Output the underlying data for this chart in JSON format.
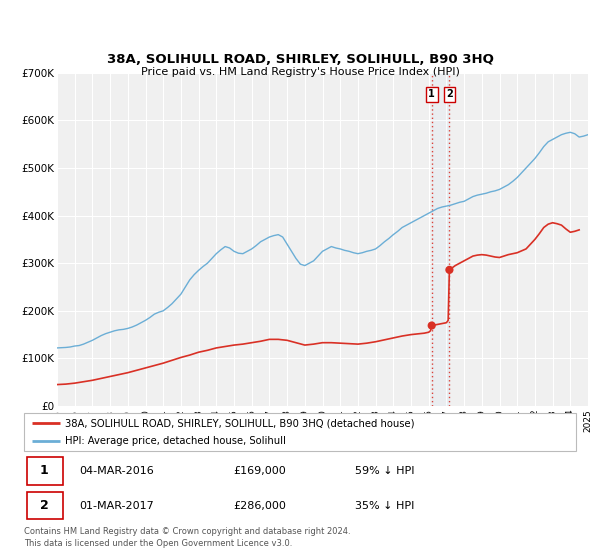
{
  "title": "38A, SOLIHULL ROAD, SHIRLEY, SOLIHULL, B90 3HQ",
  "subtitle": "Price paid vs. HM Land Registry's House Price Index (HPI)",
  "ylim": [
    0,
    700000
  ],
  "xlim": [
    1995,
    2025
  ],
  "yticks": [
    0,
    100000,
    200000,
    300000,
    400000,
    500000,
    600000,
    700000
  ],
  "ytick_labels": [
    "£0",
    "£100K",
    "£200K",
    "£300K",
    "£400K",
    "£500K",
    "£600K",
    "£700K"
  ],
  "xticks": [
    1995,
    1996,
    1997,
    1998,
    1999,
    2000,
    2001,
    2002,
    2003,
    2004,
    2005,
    2006,
    2007,
    2008,
    2009,
    2010,
    2011,
    2012,
    2013,
    2014,
    2015,
    2016,
    2017,
    2018,
    2019,
    2020,
    2021,
    2022,
    2023,
    2024,
    2025
  ],
  "hpi_color": "#6baed6",
  "property_color": "#d93025",
  "vline_color": "#d93025",
  "bg_color": "#f0f0f0",
  "grid_color": "#ffffff",
  "legend_label_property": "38A, SOLIHULL ROAD, SHIRLEY, SOLIHULL, B90 3HQ (detached house)",
  "legend_label_hpi": "HPI: Average price, detached house, Solihull",
  "annotation1_date": "04-MAR-2016",
  "annotation1_price": "£169,000",
  "annotation1_hpi": "59% ↓ HPI",
  "annotation1_year": 2016.17,
  "annotation1_value": 169000,
  "annotation2_date": "01-MAR-2017",
  "annotation2_price": "£286,000",
  "annotation2_hpi": "35% ↓ HPI",
  "annotation2_year": 2017.17,
  "annotation2_value": 286000,
  "footer1": "Contains HM Land Registry data © Crown copyright and database right 2024.",
  "footer2": "This data is licensed under the Open Government Licence v3.0.",
  "hpi_data": [
    [
      1995.0,
      122000
    ],
    [
      1995.25,
      122500
    ],
    [
      1995.5,
      123000
    ],
    [
      1995.75,
      124000
    ],
    [
      1996.0,
      126000
    ],
    [
      1996.25,
      127000
    ],
    [
      1996.5,
      130000
    ],
    [
      1996.75,
      134000
    ],
    [
      1997.0,
      138000
    ],
    [
      1997.25,
      143000
    ],
    [
      1997.5,
      148000
    ],
    [
      1997.75,
      152000
    ],
    [
      1998.0,
      155000
    ],
    [
      1998.25,
      158000
    ],
    [
      1998.5,
      160000
    ],
    [
      1998.75,
      161000
    ],
    [
      1999.0,
      163000
    ],
    [
      1999.25,
      166000
    ],
    [
      1999.5,
      170000
    ],
    [
      1999.75,
      175000
    ],
    [
      2000.0,
      180000
    ],
    [
      2000.25,
      186000
    ],
    [
      2000.5,
      193000
    ],
    [
      2000.75,
      197000
    ],
    [
      2001.0,
      200000
    ],
    [
      2001.25,
      207000
    ],
    [
      2001.5,
      215000
    ],
    [
      2001.75,
      225000
    ],
    [
      2002.0,
      235000
    ],
    [
      2002.25,
      250000
    ],
    [
      2002.5,
      265000
    ],
    [
      2002.75,
      276000
    ],
    [
      2003.0,
      285000
    ],
    [
      2003.25,
      293000
    ],
    [
      2003.5,
      300000
    ],
    [
      2003.75,
      310000
    ],
    [
      2004.0,
      320000
    ],
    [
      2004.25,
      328000
    ],
    [
      2004.5,
      335000
    ],
    [
      2004.75,
      332000
    ],
    [
      2005.0,
      325000
    ],
    [
      2005.25,
      321000
    ],
    [
      2005.5,
      320000
    ],
    [
      2005.75,
      325000
    ],
    [
      2006.0,
      330000
    ],
    [
      2006.25,
      337000
    ],
    [
      2006.5,
      345000
    ],
    [
      2006.75,
      350000
    ],
    [
      2007.0,
      355000
    ],
    [
      2007.25,
      358000
    ],
    [
      2007.5,
      360000
    ],
    [
      2007.75,
      355000
    ],
    [
      2008.0,
      340000
    ],
    [
      2008.25,
      325000
    ],
    [
      2008.5,
      310000
    ],
    [
      2008.75,
      298000
    ],
    [
      2009.0,
      295000
    ],
    [
      2009.25,
      300000
    ],
    [
      2009.5,
      305000
    ],
    [
      2009.75,
      315000
    ],
    [
      2010.0,
      325000
    ],
    [
      2010.25,
      330000
    ],
    [
      2010.5,
      335000
    ],
    [
      2010.75,
      332000
    ],
    [
      2011.0,
      330000
    ],
    [
      2011.25,
      327000
    ],
    [
      2011.5,
      325000
    ],
    [
      2011.75,
      322000
    ],
    [
      2012.0,
      320000
    ],
    [
      2012.25,
      322000
    ],
    [
      2012.5,
      325000
    ],
    [
      2012.75,
      327000
    ],
    [
      2013.0,
      330000
    ],
    [
      2013.25,
      337000
    ],
    [
      2013.5,
      345000
    ],
    [
      2013.75,
      352000
    ],
    [
      2014.0,
      360000
    ],
    [
      2014.25,
      367000
    ],
    [
      2014.5,
      375000
    ],
    [
      2014.75,
      380000
    ],
    [
      2015.0,
      385000
    ],
    [
      2015.25,
      390000
    ],
    [
      2015.5,
      395000
    ],
    [
      2015.75,
      400000
    ],
    [
      2016.0,
      405000
    ],
    [
      2016.25,
      410000
    ],
    [
      2016.5,
      415000
    ],
    [
      2016.75,
      418000
    ],
    [
      2017.0,
      420000
    ],
    [
      2017.25,
      422000
    ],
    [
      2017.5,
      425000
    ],
    [
      2017.75,
      428000
    ],
    [
      2018.0,
      430000
    ],
    [
      2018.25,
      435000
    ],
    [
      2018.5,
      440000
    ],
    [
      2018.75,
      443000
    ],
    [
      2019.0,
      445000
    ],
    [
      2019.25,
      447000
    ],
    [
      2019.5,
      450000
    ],
    [
      2019.75,
      452000
    ],
    [
      2020.0,
      455000
    ],
    [
      2020.25,
      460000
    ],
    [
      2020.5,
      465000
    ],
    [
      2020.75,
      472000
    ],
    [
      2021.0,
      480000
    ],
    [
      2021.25,
      490000
    ],
    [
      2021.5,
      500000
    ],
    [
      2021.75,
      510000
    ],
    [
      2022.0,
      520000
    ],
    [
      2022.25,
      532000
    ],
    [
      2022.5,
      545000
    ],
    [
      2022.75,
      555000
    ],
    [
      2023.0,
      560000
    ],
    [
      2023.25,
      565000
    ],
    [
      2023.5,
      570000
    ],
    [
      2023.75,
      573000
    ],
    [
      2024.0,
      575000
    ],
    [
      2024.25,
      572000
    ],
    [
      2024.5,
      565000
    ],
    [
      2024.75,
      567000
    ],
    [
      2025.0,
      570000
    ]
  ],
  "property_data": [
    [
      1995.0,
      45000
    ],
    [
      1995.5,
      46000
    ],
    [
      1996.0,
      48000
    ],
    [
      1996.5,
      51000
    ],
    [
      1997.0,
      54000
    ],
    [
      1997.5,
      58000
    ],
    [
      1998.0,
      62000
    ],
    [
      1998.5,
      66000
    ],
    [
      1999.0,
      70000
    ],
    [
      1999.5,
      75000
    ],
    [
      2000.0,
      80000
    ],
    [
      2000.5,
      85000
    ],
    [
      2001.0,
      90000
    ],
    [
      2001.5,
      96000
    ],
    [
      2002.0,
      102000
    ],
    [
      2002.5,
      107000
    ],
    [
      2003.0,
      113000
    ],
    [
      2003.5,
      117000
    ],
    [
      2004.0,
      122000
    ],
    [
      2004.5,
      125000
    ],
    [
      2005.0,
      128000
    ],
    [
      2005.5,
      130000
    ],
    [
      2006.0,
      133000
    ],
    [
      2006.5,
      136000
    ],
    [
      2007.0,
      140000
    ],
    [
      2007.5,
      140000
    ],
    [
      2008.0,
      138000
    ],
    [
      2008.5,
      133000
    ],
    [
      2009.0,
      128000
    ],
    [
      2009.5,
      130000
    ],
    [
      2010.0,
      133000
    ],
    [
      2010.5,
      133000
    ],
    [
      2011.0,
      132000
    ],
    [
      2011.5,
      131000
    ],
    [
      2012.0,
      130000
    ],
    [
      2012.5,
      132000
    ],
    [
      2013.0,
      135000
    ],
    [
      2013.5,
      139000
    ],
    [
      2014.0,
      143000
    ],
    [
      2014.5,
      147000
    ],
    [
      2015.0,
      150000
    ],
    [
      2015.25,
      151000
    ],
    [
      2015.5,
      152000
    ],
    [
      2015.75,
      153000
    ],
    [
      2016.0,
      155000
    ],
    [
      2016.1,
      158000
    ],
    [
      2016.17,
      169000
    ],
    [
      2017.0,
      175000
    ],
    [
      2017.1,
      180000
    ],
    [
      2017.17,
      286000
    ],
    [
      2017.5,
      295000
    ],
    [
      2017.75,
      300000
    ],
    [
      2018.0,
      305000
    ],
    [
      2018.25,
      310000
    ],
    [
      2018.5,
      315000
    ],
    [
      2018.75,
      317000
    ],
    [
      2019.0,
      318000
    ],
    [
      2019.25,
      317000
    ],
    [
      2019.5,
      315000
    ],
    [
      2019.75,
      313000
    ],
    [
      2020.0,
      312000
    ],
    [
      2020.25,
      315000
    ],
    [
      2020.5,
      318000
    ],
    [
      2020.75,
      320000
    ],
    [
      2021.0,
      322000
    ],
    [
      2021.25,
      326000
    ],
    [
      2021.5,
      330000
    ],
    [
      2021.75,
      340000
    ],
    [
      2022.0,
      350000
    ],
    [
      2022.25,
      362000
    ],
    [
      2022.5,
      375000
    ],
    [
      2022.75,
      382000
    ],
    [
      2023.0,
      385000
    ],
    [
      2023.25,
      383000
    ],
    [
      2023.5,
      380000
    ],
    [
      2023.75,
      372000
    ],
    [
      2024.0,
      365000
    ],
    [
      2024.25,
      367000
    ],
    [
      2024.5,
      370000
    ]
  ]
}
